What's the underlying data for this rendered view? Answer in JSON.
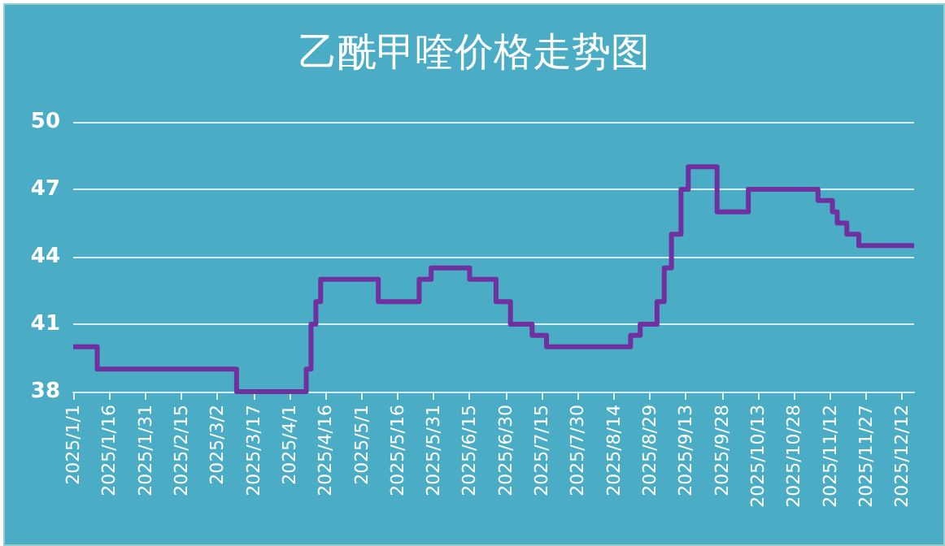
{
  "chart_data": {
    "type": "step",
    "title": "乙酰甲喹价格走势图",
    "x": [
      "2025-01-01",
      "2025-01-11",
      "2025-03-10",
      "2025-04-08",
      "2025-04-10",
      "2025-04-12",
      "2025-04-14",
      "2025-04-19",
      "2025-05-08",
      "2025-05-25",
      "2025-05-30",
      "2025-06-15",
      "2025-06-26",
      "2025-07-02",
      "2025-07-11",
      "2025-07-17",
      "2025-08-21",
      "2025-08-25",
      "2025-09-01",
      "2025-09-04",
      "2025-09-07",
      "2025-09-11",
      "2025-09-14",
      "2025-09-26",
      "2025-10-09",
      "2025-11-07",
      "2025-11-13",
      "2025-11-15",
      "2025-11-19",
      "2025-11-24",
      "2025-12-17"
    ],
    "series": [
      {
        "color": "#7030a0",
        "values": [
          40,
          39,
          38,
          39,
          41,
          42,
          43,
          43,
          42,
          43,
          43.5,
          43,
          42,
          41,
          40.5,
          40,
          40.5,
          41,
          42,
          43.5,
          45,
          47,
          48,
          46,
          47,
          46.5,
          46,
          45.5,
          45,
          44.5,
          44.5
        ]
      }
    ],
    "xlim": [
      "2025-01-01",
      "2025-12-17"
    ],
    "xticks": [
      {
        "value": "2025-01-01",
        "label": "2025/1/1"
      },
      {
        "value": "2025-01-16",
        "label": "2025/1/16"
      },
      {
        "value": "2025-01-31",
        "label": "2025/1/31"
      },
      {
        "value": "2025-02-15",
        "label": "2025/2/15"
      },
      {
        "value": "2025-03-02",
        "label": "2025/3/2"
      },
      {
        "value": "2025-03-17",
        "label": "2025/3/17"
      },
      {
        "value": "2025-04-01",
        "label": "2025/4/1"
      },
      {
        "value": "2025-04-16",
        "label": "2025/4/16"
      },
      {
        "value": "2025-05-01",
        "label": "2025/5/1"
      },
      {
        "value": "2025-05-16",
        "label": "2025/5/16"
      },
      {
        "value": "2025-05-31",
        "label": "2025/5/31"
      },
      {
        "value": "2025-06-15",
        "label": "2025/6/15"
      },
      {
        "value": "2025-06-30",
        "label": "2025/6/30"
      },
      {
        "value": "2025-07-15",
        "label": "2025/7/15"
      },
      {
        "value": "2025-07-30",
        "label": "2025/7/30"
      },
      {
        "value": "2025-08-14",
        "label": "2025/8/14"
      },
      {
        "value": "2025-08-29",
        "label": "2025/8/29"
      },
      {
        "value": "2025-09-13",
        "label": "2025/9/13"
      },
      {
        "value": "2025-09-28",
        "label": "2025/9/28"
      },
      {
        "value": "2025-10-13",
        "label": "2025/10/13"
      },
      {
        "value": "2025-10-28",
        "label": "2025/10/28"
      },
      {
        "value": "2025-11-12",
        "label": "2025/11/12"
      },
      {
        "value": "2025-11-27",
        "label": "2025/11/27"
      },
      {
        "value": "2025-12-12",
        "label": "2025/12/12"
      }
    ],
    "ylim": [
      38,
      50
    ],
    "yticks": [
      38,
      41,
      44,
      47,
      50
    ],
    "grid": "y",
    "marker": "none",
    "line_style": "solid"
  }
}
